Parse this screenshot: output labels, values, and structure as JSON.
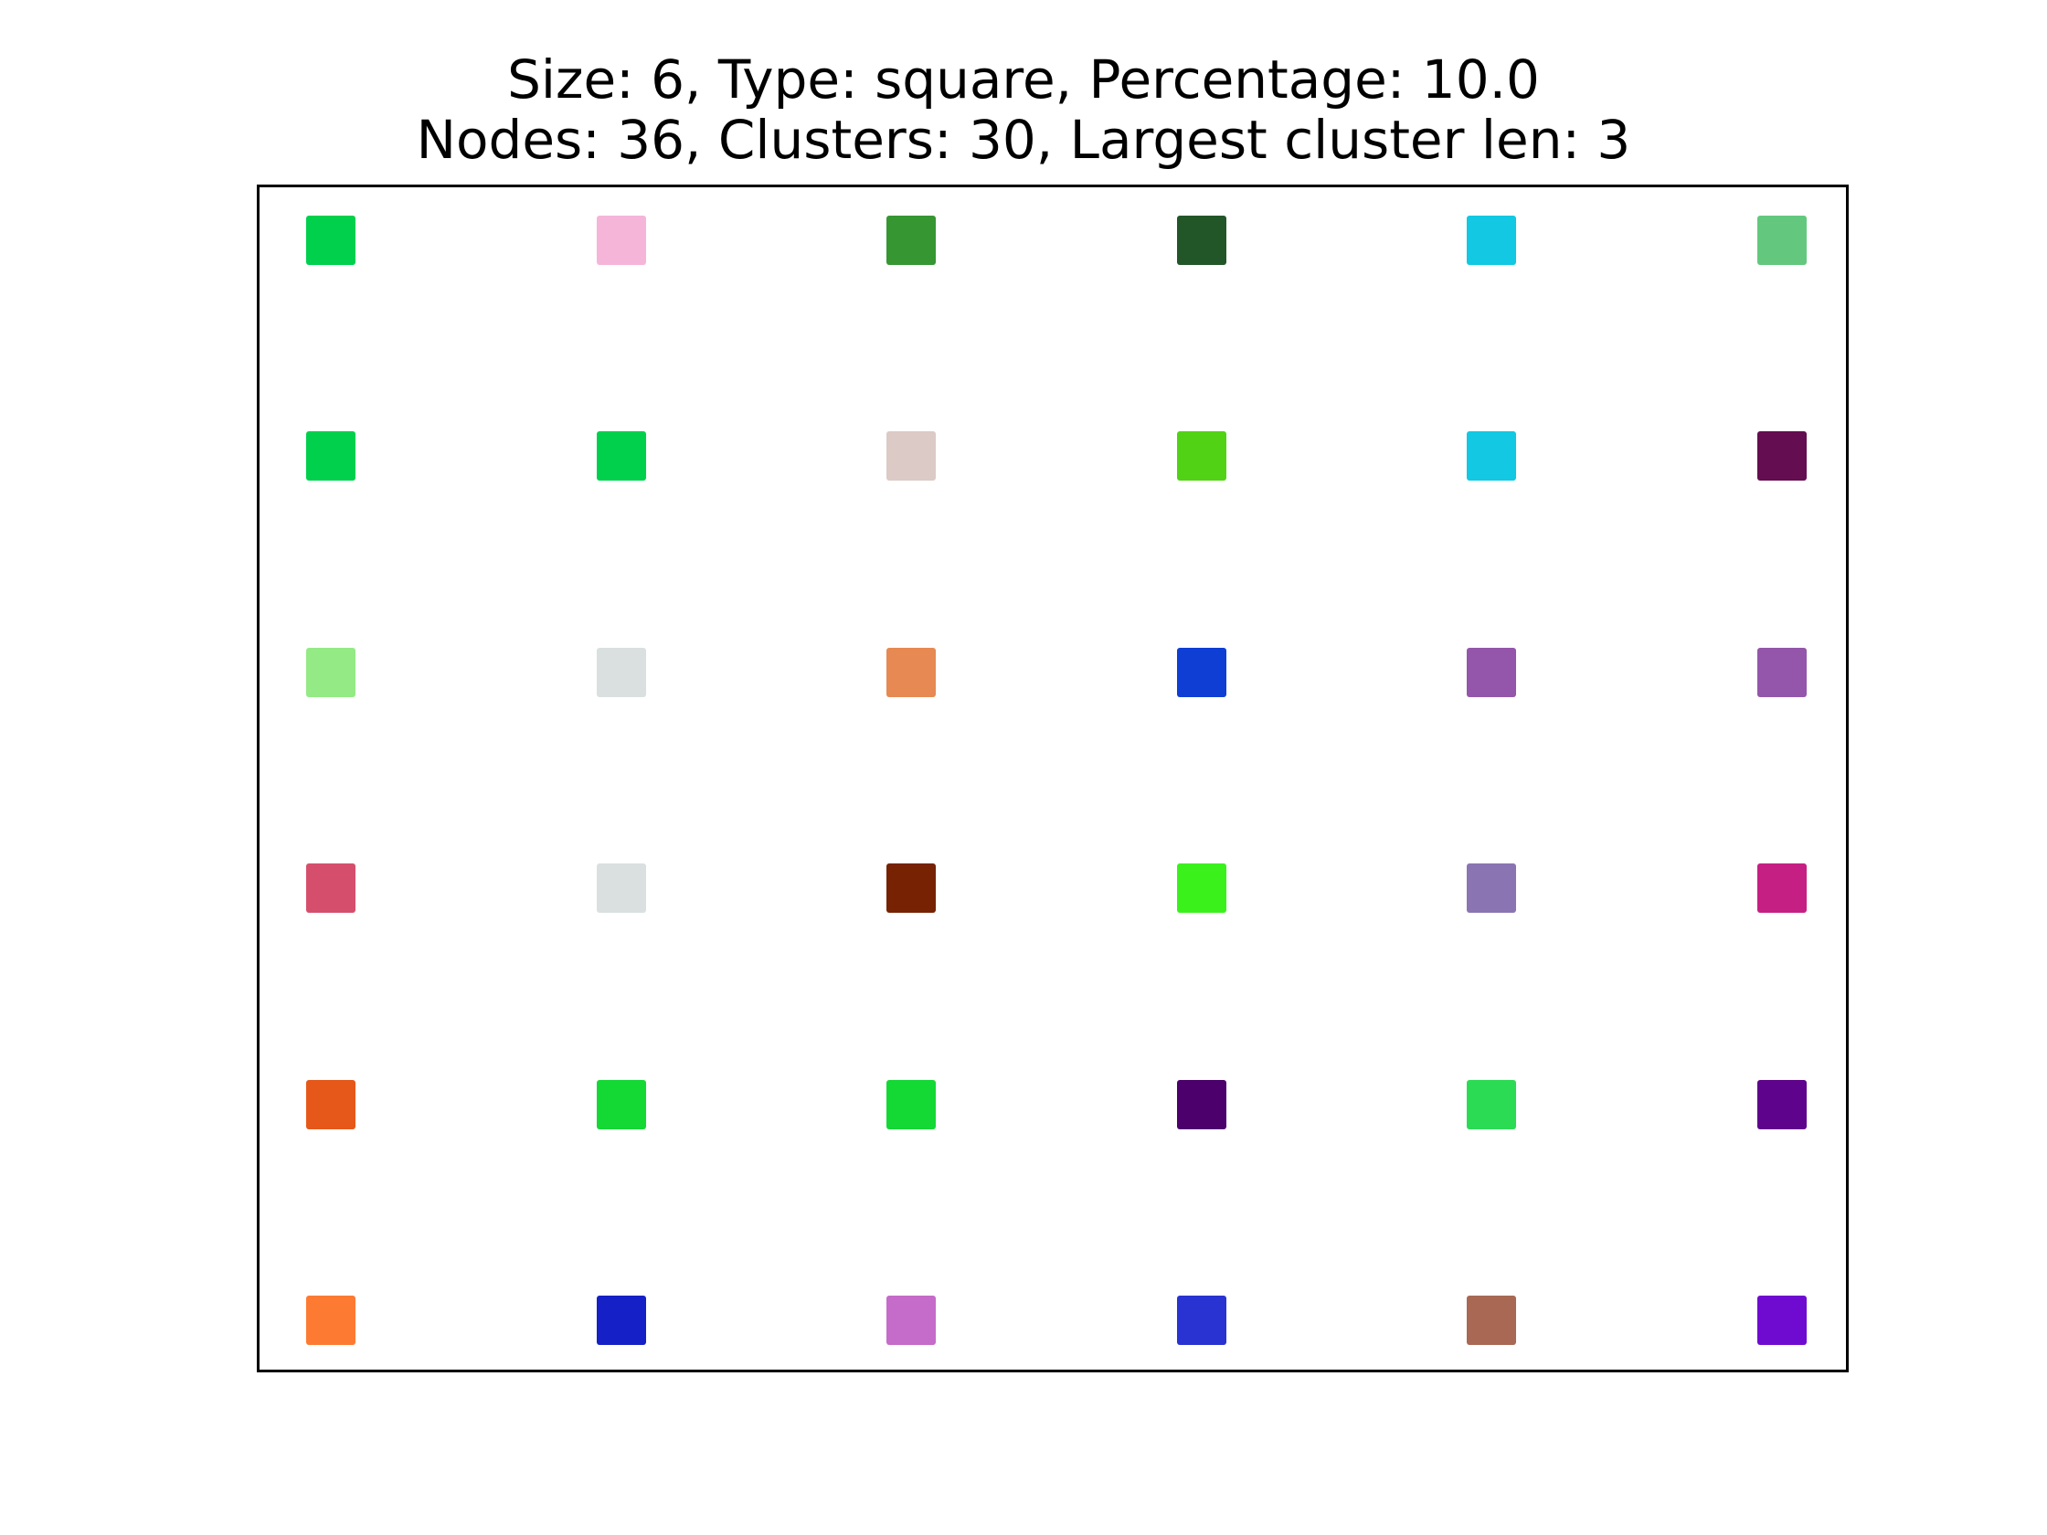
{
  "title": {
    "line1": "Size: 6, Type: square, Percentage: 10.0",
    "line2": "Nodes: 36, Clusters: 30, Largest cluster len: 3"
  },
  "grid": {
    "size": 6,
    "rows": [
      [
        "#00d04c",
        "#f5b5d9",
        "#369632",
        "#225628",
        "#12c8e2",
        "#63c87e"
      ],
      [
        "#00d04c",
        "#00d04c",
        "#dccac7",
        "#51d214",
        "#12c8e2",
        "#640d50"
      ],
      [
        "#94ea85",
        "#d9e0df",
        "#e68952",
        "#0e3ed4",
        "#9356aa",
        "#9356aa"
      ],
      [
        "#d54f6d",
        "#d9e0df",
        "#762203",
        "#3af11c",
        "#8a75b2",
        "#c61f84"
      ],
      [
        "#e6581a",
        "#14d935",
        "#14d935",
        "#4b006c",
        "#2cdb54",
        "#5e038b"
      ],
      [
        "#fd7a32",
        "#1520c6",
        "#c56bc9",
        "#2933d1",
        "#a86853",
        "#6f0bd1"
      ]
    ]
  }
}
